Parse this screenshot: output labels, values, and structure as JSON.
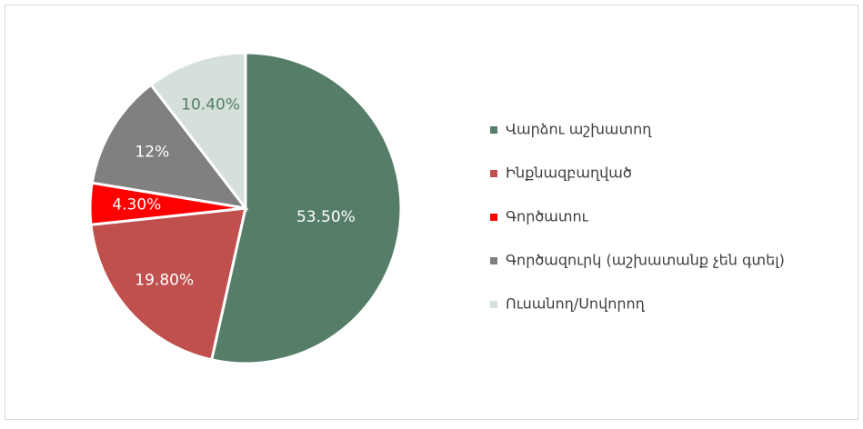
{
  "chart_data": {
    "type": "pie",
    "categories": [
      "Վարձու աշխատող",
      "Ինքնազբաղված",
      "Գործատու",
      "Գործազուրկ (աշխատանք չեն գտել)",
      "Ուսանող/Սովորող"
    ],
    "values": [
      53.5,
      19.8,
      4.3,
      12,
      10.4
    ],
    "value_labels": [
      "53.50%",
      "19.80%",
      "4.30%",
      "12%",
      "10.40%"
    ],
    "colors": [
      "#557d68",
      "#c0504d",
      "#ff0000",
      "#808080",
      "#d6e0db"
    ],
    "legend": "right"
  }
}
